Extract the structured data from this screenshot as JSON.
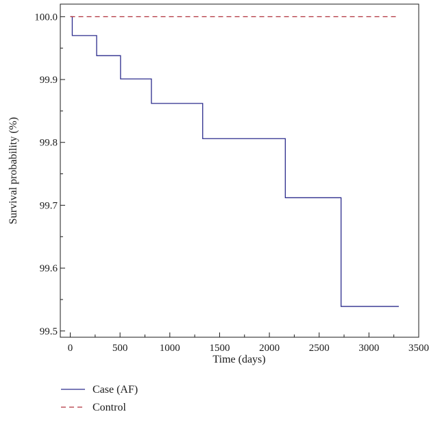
{
  "chart_data": {
    "type": "line",
    "title": "",
    "xlabel": "Time (days)",
    "ylabel": "Survival probability (%)",
    "xlim": [
      -100,
      3500
    ],
    "ylim": [
      99.49,
      100.02
    ],
    "x_ticks": [
      0,
      500,
      1000,
      1500,
      2000,
      2500,
      3000,
      3500
    ],
    "x_tick_labels": [
      "0",
      "500",
      "1000",
      "1500",
      "2000",
      "2500",
      "3000",
      "3500"
    ],
    "y_ticks": [
      99.5,
      99.6,
      99.7,
      99.8,
      99.9,
      100.0
    ],
    "y_tick_labels": [
      "99.5",
      "99.6",
      "99.7",
      "99.8",
      "99.9",
      "100.0"
    ],
    "grid": false,
    "legend_position": "bottom-left, below plot",
    "series": [
      {
        "name": "Case (AF)",
        "style": "step",
        "color": "#2b2b8c",
        "dash": "solid",
        "x": [
          0,
          20,
          265,
          505,
          815,
          1330,
          2160,
          2720,
          3300
        ],
        "y": [
          100.0,
          99.97,
          99.938,
          99.901,
          99.862,
          99.806,
          99.712,
          99.539,
          99.539
        ]
      },
      {
        "name": "Control",
        "style": "line",
        "color": "#b0303a",
        "dash": "dashed",
        "x": [
          0,
          3300
        ],
        "y": [
          100.0,
          100.0
        ]
      }
    ]
  }
}
